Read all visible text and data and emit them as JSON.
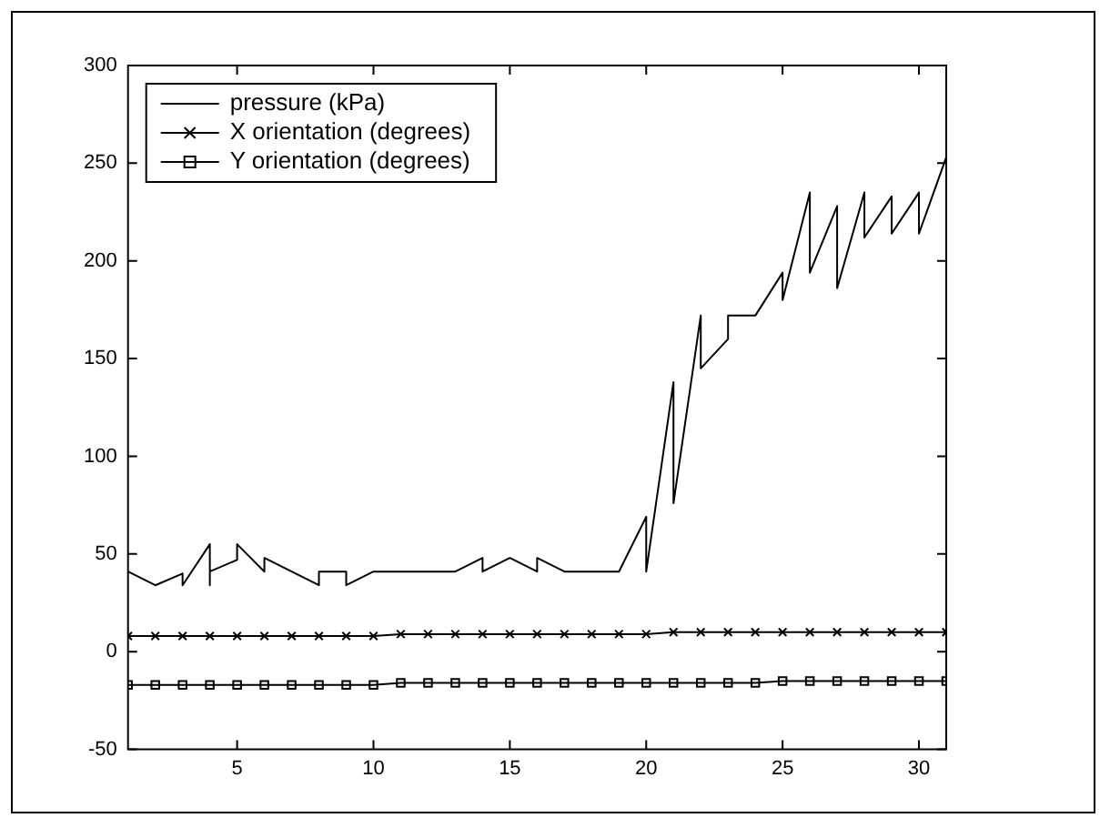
{
  "chart_data": {
    "type": "line",
    "xlim": [
      1,
      31
    ],
    "xticks": [
      5,
      10,
      15,
      20,
      25,
      30
    ],
    "ylim": [
      -50,
      300
    ],
    "yticks": [
      -50,
      0,
      50,
      100,
      150,
      200,
      250,
      300
    ],
    "grid": false,
    "legend": "top left",
    "line_style": "solid",
    "series": [
      {
        "name": "pressure (kPa)",
        "color": "#000000",
        "marker": "none",
        "x": [
          1,
          2,
          3,
          3,
          4,
          4,
          4,
          5,
          5,
          6,
          6,
          8,
          8,
          9,
          9,
          10,
          13,
          14,
          14,
          15,
          16,
          16,
          17,
          19,
          20,
          20,
          21,
          21,
          22,
          22,
          23,
          23,
          24,
          25,
          25,
          26,
          26,
          27,
          27,
          28,
          28,
          29,
          29,
          30,
          30,
          31
        ],
        "values": [
          41,
          34,
          40,
          34,
          55,
          34,
          41,
          47,
          55,
          41,
          48,
          34,
          41,
          41,
          34,
          41,
          41,
          48,
          41,
          48,
          41,
          48,
          41,
          41,
          69,
          41,
          138,
          76,
          172,
          145,
          160,
          172,
          172,
          194,
          180,
          235,
          194,
          228,
          186,
          235,
          212,
          233,
          214,
          235,
          214,
          253
        ]
      },
      {
        "name": "X orientation (degrees)",
        "color": "#000000",
        "marker": "cross",
        "x": [
          1,
          2,
          3,
          4,
          5,
          6,
          7,
          8,
          9,
          10,
          11,
          12,
          13,
          14,
          15,
          16,
          17,
          18,
          19,
          20,
          21,
          22,
          23,
          24,
          25,
          26,
          27,
          28,
          29,
          30,
          31
        ],
        "values": [
          8,
          8,
          8,
          8,
          8,
          8,
          8,
          8,
          8,
          8,
          9,
          9,
          9,
          9,
          9,
          9,
          9,
          9,
          9,
          9,
          10,
          10,
          10,
          10,
          10,
          10,
          10,
          10,
          10,
          10,
          10
        ]
      },
      {
        "name": "Y orientation (degrees)",
        "color": "#000000",
        "marker": "square",
        "x": [
          1,
          2,
          3,
          4,
          5,
          6,
          7,
          8,
          9,
          10,
          11,
          12,
          13,
          14,
          15,
          16,
          17,
          18,
          19,
          20,
          21,
          22,
          23,
          24,
          25,
          26,
          27,
          28,
          29,
          30,
          31
        ],
        "values": [
          -17,
          -17,
          -17,
          -17,
          -17,
          -17,
          -17,
          -17,
          -17,
          -17,
          -16,
          -16,
          -16,
          -16,
          -16,
          -16,
          -16,
          -16,
          -16,
          -16,
          -16,
          -16,
          -16,
          -16,
          -15,
          -15,
          -15,
          -15,
          -15,
          -15,
          -15
        ]
      }
    ]
  }
}
